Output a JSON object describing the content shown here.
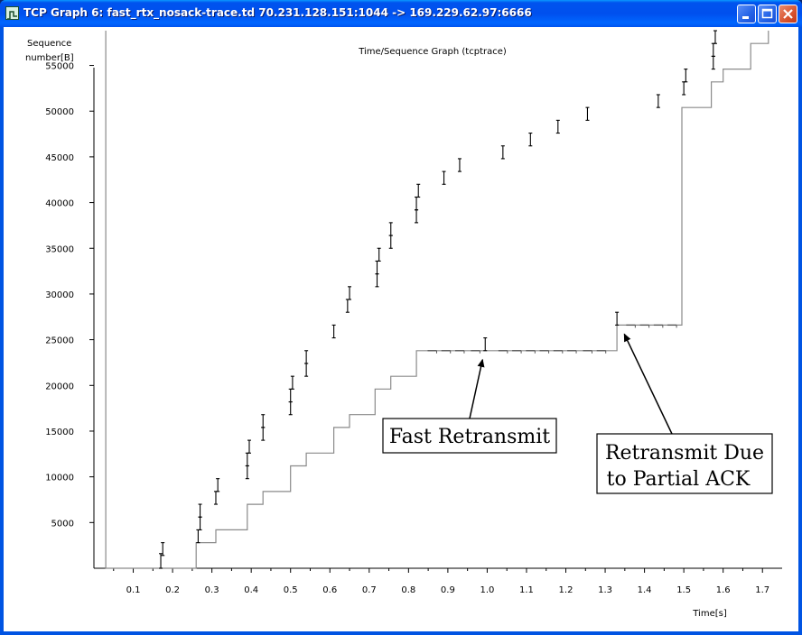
{
  "window": {
    "title": "TCP Graph 6: fast_rtx_nosack-trace.td 70.231.128.151:1044 -> 169.229.62.97:6666",
    "buttons": {
      "minimize": "_",
      "maximize": "□",
      "close": "✕"
    }
  },
  "chart_data": {
    "type": "scatter",
    "title": "Time/Sequence Graph (tcptrace)",
    "ylabel_line1": "Sequence",
    "ylabel_line2": "number[B]",
    "xlabel": "Time[s]",
    "xlim": [
      0,
      1.75
    ],
    "ylim": [
      0,
      59000
    ],
    "x_ticks": [
      "0.1",
      "0.2",
      "0.3",
      "0.4",
      "0.5",
      "0.6",
      "0.7",
      "0.8",
      "0.9",
      "1.0",
      "1.1",
      "1.2",
      "1.3",
      "1.4",
      "1.5",
      "1.6",
      "1.7"
    ],
    "y_ticks": [
      "5000",
      "10000",
      "15000",
      "20000",
      "25000",
      "30000",
      "35000",
      "40000",
      "45000",
      "50000",
      "55000"
    ],
    "data_segments": [
      {
        "x": 0.17,
        "y_low": 0,
        "y_high": 1600
      },
      {
        "x": 0.175,
        "y_low": 1400,
        "y_high": 2800
      },
      {
        "x": 0.265,
        "y_low": 2800,
        "y_high": 4200
      },
      {
        "x": 0.27,
        "y_low": 4200,
        "y_high": 5600
      },
      {
        "x": 0.27,
        "y_low": 5600,
        "y_high": 7000
      },
      {
        "x": 0.31,
        "y_low": 7000,
        "y_high": 8400
      },
      {
        "x": 0.315,
        "y_low": 8400,
        "y_high": 9800
      },
      {
        "x": 0.39,
        "y_low": 9800,
        "y_high": 11200
      },
      {
        "x": 0.39,
        "y_low": 11200,
        "y_high": 12600
      },
      {
        "x": 0.395,
        "y_low": 12600,
        "y_high": 14000
      },
      {
        "x": 0.43,
        "y_low": 14000,
        "y_high": 15400
      },
      {
        "x": 0.43,
        "y_low": 15400,
        "y_high": 16800
      },
      {
        "x": 0.5,
        "y_low": 16800,
        "y_high": 18200
      },
      {
        "x": 0.5,
        "y_low": 18200,
        "y_high": 19600
      },
      {
        "x": 0.505,
        "y_low": 19600,
        "y_high": 21000
      },
      {
        "x": 0.54,
        "y_low": 21000,
        "y_high": 22400
      },
      {
        "x": 0.54,
        "y_low": 22400,
        "y_high": 23800
      },
      {
        "x": 0.61,
        "y_low": 25200,
        "y_high": 26600
      },
      {
        "x": 0.645,
        "y_low": 28000,
        "y_high": 29400
      },
      {
        "x": 0.65,
        "y_low": 29400,
        "y_high": 30800
      },
      {
        "x": 0.72,
        "y_low": 30800,
        "y_high": 32200
      },
      {
        "x": 0.72,
        "y_low": 32200,
        "y_high": 33600
      },
      {
        "x": 0.725,
        "y_low": 33600,
        "y_high": 35000
      },
      {
        "x": 0.755,
        "y_low": 35000,
        "y_high": 36400
      },
      {
        "x": 0.755,
        "y_low": 36400,
        "y_high": 37800
      },
      {
        "x": 0.82,
        "y_low": 37800,
        "y_high": 39200
      },
      {
        "x": 0.82,
        "y_low": 39200,
        "y_high": 40600
      },
      {
        "x": 0.825,
        "y_low": 40600,
        "y_high": 42000
      },
      {
        "x": 0.89,
        "y_low": 42000,
        "y_high": 43400
      },
      {
        "x": 0.93,
        "y_low": 43400,
        "y_high": 44800
      },
      {
        "x": 0.995,
        "y_low": 23800,
        "y_high": 25200
      },
      {
        "x": 1.04,
        "y_low": 44800,
        "y_high": 46200
      },
      {
        "x": 1.11,
        "y_low": 46200,
        "y_high": 47600
      },
      {
        "x": 1.18,
        "y_low": 47600,
        "y_high": 49000
      },
      {
        "x": 1.255,
        "y_low": 49000,
        "y_high": 50400
      },
      {
        "x": 1.33,
        "y_low": 26600,
        "y_high": 28000
      },
      {
        "x": 1.435,
        "y_low": 50400,
        "y_high": 51800
      },
      {
        "x": 1.5,
        "y_low": 51800,
        "y_high": 53200
      },
      {
        "x": 1.505,
        "y_low": 53200,
        "y_high": 54600
      },
      {
        "x": 1.575,
        "y_low": 54600,
        "y_high": 56000
      },
      {
        "x": 1.575,
        "y_low": 56000,
        "y_high": 57400
      },
      {
        "x": 1.58,
        "y_low": 57400,
        "y_high": 58800
      }
    ],
    "ack_step": [
      [
        0.03,
        1500
      ],
      [
        0.03,
        58800
      ],
      [
        0.03,
        0
      ],
      [
        0.26,
        0
      ],
      [
        0.26,
        2800
      ],
      [
        0.31,
        2800
      ],
      [
        0.31,
        4200
      ],
      [
        0.39,
        4200
      ],
      [
        0.39,
        7000
      ],
      [
        0.43,
        7000
      ],
      [
        0.43,
        8400
      ],
      [
        0.5,
        8400
      ],
      [
        0.5,
        11200
      ],
      [
        0.54,
        11200
      ],
      [
        0.54,
        12600
      ],
      [
        0.61,
        12600
      ],
      [
        0.61,
        15400
      ],
      [
        0.65,
        15400
      ],
      [
        0.65,
        16800
      ],
      [
        0.715,
        16800
      ],
      [
        0.715,
        19600
      ],
      [
        0.755,
        19600
      ],
      [
        0.755,
        21000
      ],
      [
        0.82,
        21000
      ],
      [
        0.82,
        23800
      ],
      [
        1.33,
        23800
      ],
      [
        1.33,
        26600
      ],
      [
        1.495,
        26600
      ],
      [
        1.495,
        50400
      ],
      [
        1.57,
        50400
      ],
      [
        1.57,
        53200
      ],
      [
        1.6,
        53200
      ],
      [
        1.6,
        54600
      ],
      [
        1.67,
        54600
      ],
      [
        1.67,
        57400
      ],
      [
        1.715,
        57400
      ],
      [
        1.715,
        58800
      ]
    ],
    "dup_ack_ticks": [
      [
        0.86,
        23800
      ],
      [
        0.895,
        23800
      ],
      [
        0.93,
        23800
      ],
      [
        0.97,
        23800
      ],
      [
        1.04,
        23800
      ],
      [
        1.075,
        23800
      ],
      [
        1.11,
        23800
      ],
      [
        1.145,
        23800
      ],
      [
        1.18,
        23800
      ],
      [
        1.215,
        23800
      ],
      [
        1.255,
        23800
      ],
      [
        1.29,
        23800
      ],
      [
        1.365,
        26600
      ],
      [
        1.4,
        26600
      ],
      [
        1.435,
        26600
      ],
      [
        1.47,
        26600
      ]
    ],
    "annotations": [
      {
        "text": "Fast Retransmit",
        "arrow_to": [
          0.995,
          23800
        ]
      },
      {
        "text_line1": "Retransmit Due",
        "text_line2": "to Partial ACK",
        "arrow_to": [
          1.335,
          26600
        ]
      }
    ]
  }
}
